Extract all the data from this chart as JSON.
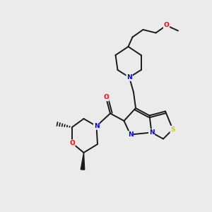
{
  "background_color": "#ebebeb",
  "atom_color_N": "#0000ff",
  "atom_color_O": "#ff0000",
  "atom_color_S": "#cccc00",
  "atom_color_C": "#1a1a1a",
  "line_color": "#1a1a1a",
  "line_width": 1.4,
  "figsize": [
    3.0,
    3.0
  ],
  "dpi": 100,
  "xlim": [
    0,
    10
  ],
  "ylim": [
    0,
    10
  ]
}
